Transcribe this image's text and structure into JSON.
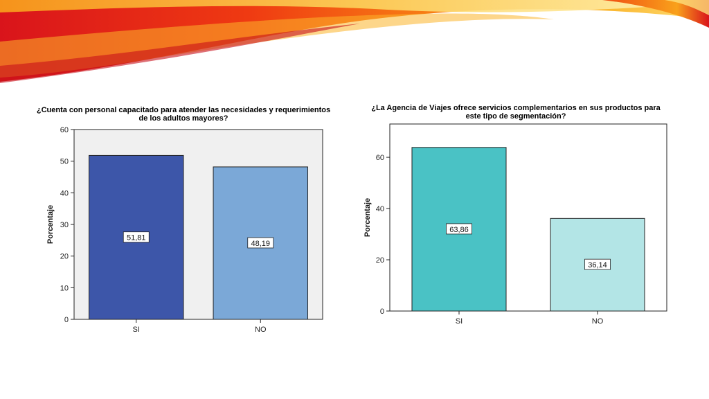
{
  "colors": {
    "plot_bg_left": "#f0f0f0",
    "plot_bg_right": "#ffffff",
    "left_si": "#3d56a9",
    "left_no": "#7ba8d7",
    "right_si": "#4ac2c5",
    "right_no": "#b3e5e6"
  },
  "chart_data": [
    {
      "type": "bar",
      "title": "¿Cuenta con personal capacitado para atender las necesidades y requerimientos de los adultos mayores?",
      "title_lines": [
        "¿Cuenta con personal capacitado para atender las necesidades y requerimientos",
        "de los adultos mayores?"
      ],
      "categories": [
        "SI",
        "NO"
      ],
      "values": [
        51.81,
        48.19
      ],
      "data_labels": [
        "51,81",
        "48,19"
      ],
      "ylabel": "Porcentaje",
      "ylim": [
        0,
        60
      ],
      "yticks": [
        0,
        10,
        20,
        30,
        40,
        50,
        60
      ],
      "grid": false
    },
    {
      "type": "bar",
      "title": "¿La Agencia de Viajes ofrece servicios complementarios en sus productos para este tipo de segmentación?",
      "title_lines": [
        "¿La Agencia de Viajes ofrece servicios complementarios en sus productos para",
        "este tipo de segmentación?"
      ],
      "categories": [
        "SI",
        "NO"
      ],
      "values": [
        63.86,
        36.14
      ],
      "data_labels": [
        "63,86",
        "36,14"
      ],
      "ylabel": "Porcentaje",
      "ylim": [
        0,
        73
      ],
      "yticks": [
        0,
        20,
        40,
        60
      ],
      "grid": false
    }
  ]
}
